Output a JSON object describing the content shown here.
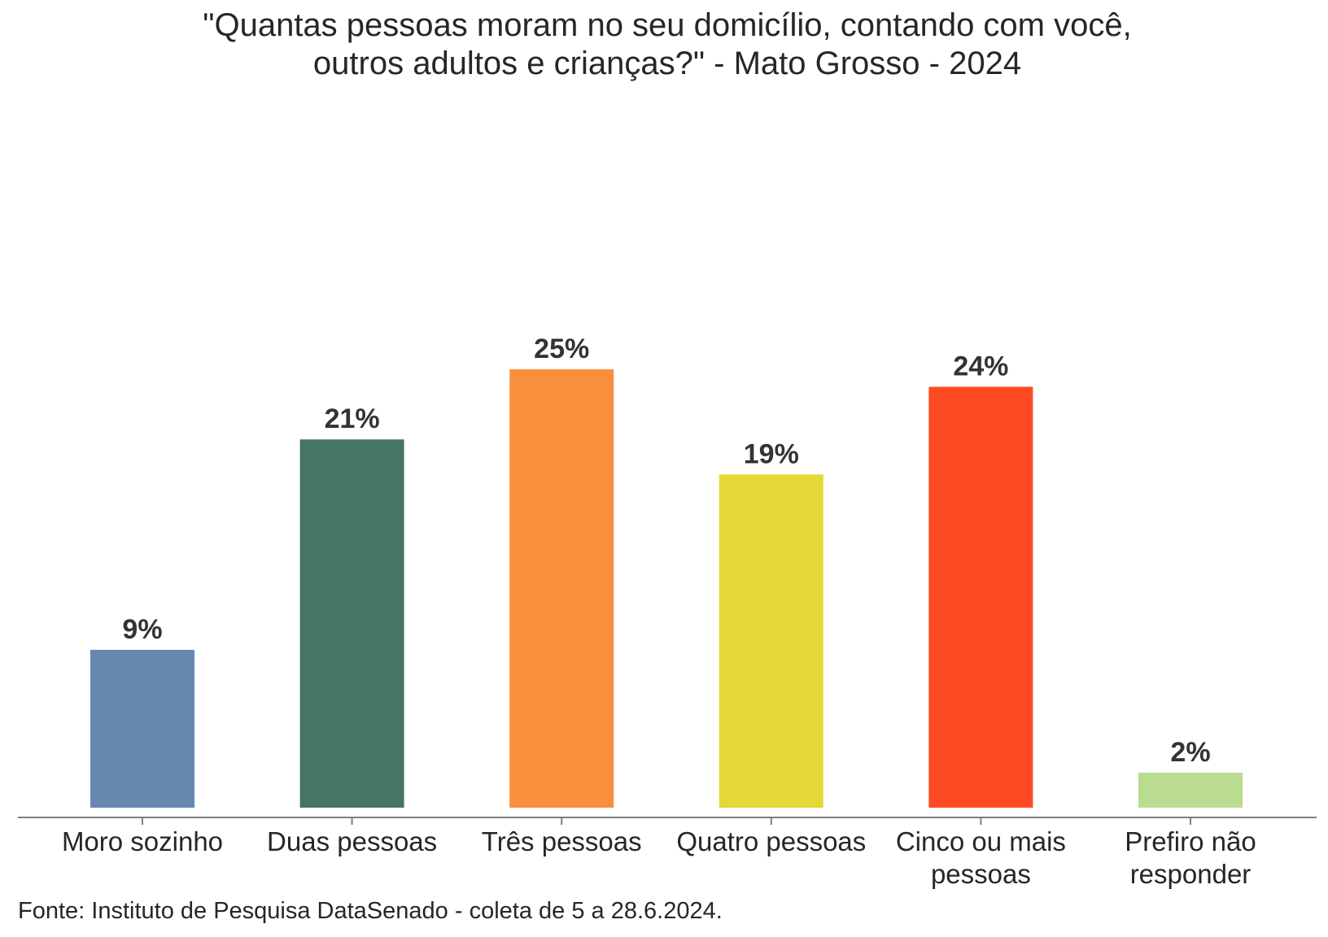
{
  "chart_data": {
    "type": "bar",
    "title": [
      "\"Quantas pessoas moram no seu domicílio, contando com você,",
      "outros adultos e crianças?\" - Mato Grosso - 2024"
    ],
    "categories": [
      [
        "Moro sozinho"
      ],
      [
        "Duas pessoas"
      ],
      [
        "Três pessoas"
      ],
      [
        "Quatro pessoas"
      ],
      [
        "Cinco ou mais",
        "pessoas"
      ],
      [
        "Prefiro não",
        "responder"
      ]
    ],
    "values": [
      9,
      21,
      25,
      19,
      24,
      2
    ],
    "value_labels": [
      "9%",
      "21%",
      "25%",
      "19%",
      "24%",
      "2%"
    ],
    "unit": "%",
    "colors": [
      "#6688B0",
      "#477565",
      "#F98F3C",
      "#E3D836",
      "#FE4A22",
      "#BADC90"
    ],
    "ylim": [
      0,
      25
    ],
    "grid": false,
    "legend": "none"
  },
  "source": "Fonte: Instituto de Pesquisa DataSenado - coleta de 5 a 28.6.2024."
}
